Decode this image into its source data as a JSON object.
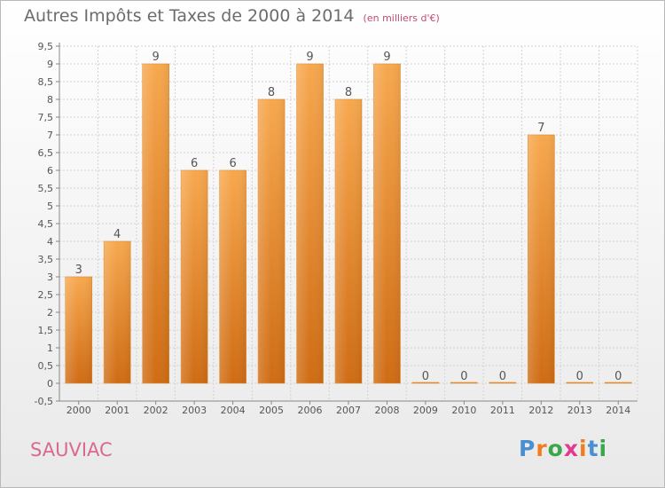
{
  "title": "Autres Impôts et Taxes de 2000 à 2014",
  "subtitle": "(en milliers d'€)",
  "commune": "SAUVIAC",
  "logo": {
    "text": "Proxiti",
    "colors": [
      "#4c8fd0",
      "#f07d1e",
      "#3aa84a",
      "#e43a8e",
      "#f07d1e",
      "#4c8fd0",
      "#3aa84a"
    ]
  },
  "chart_data": {
    "type": "bar",
    "categories": [
      "2000",
      "2001",
      "2002",
      "2003",
      "2004",
      "2005",
      "2006",
      "2007",
      "2008",
      "2009",
      "2010",
      "2011",
      "2012",
      "2013",
      "2014"
    ],
    "values": [
      3,
      4,
      9,
      6,
      6,
      8,
      9,
      8,
      9,
      0,
      0,
      0,
      7,
      0,
      0
    ],
    "ylim": [
      -0.5,
      9.5
    ],
    "yticks": [
      "-0,5",
      "0",
      "0,5",
      "1",
      "1,5",
      "2",
      "2,5",
      "3",
      "3,5",
      "4",
      "4,5",
      "5",
      "5,5",
      "6",
      "6,5",
      "7",
      "7,5",
      "8",
      "8,5",
      "9",
      "9,5"
    ],
    "bar_color": "#f39c3c",
    "grid": true
  }
}
